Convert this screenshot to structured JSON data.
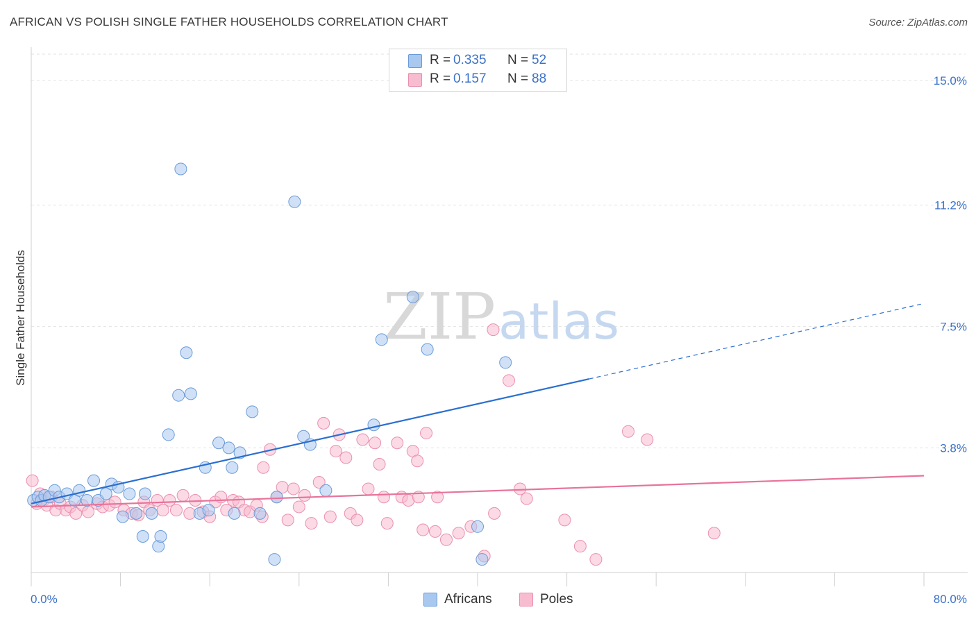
{
  "title": "AFRICAN VS POLISH SINGLE FATHER HOUSEHOLDS CORRELATION CHART",
  "source": "Source: ZipAtlas.com",
  "watermark": {
    "zip": "ZIP",
    "atlas": "atlas"
  },
  "legend_top": {
    "rows": [
      {
        "r_label": "R =",
        "r_value": "0.335",
        "n_label": "N =",
        "n_value": "52",
        "color": "#a9c8f0"
      },
      {
        "r_label": "R =",
        "r_value": "0.157",
        "n_label": "N =",
        "n_value": "88",
        "color": "#f8bcd0"
      }
    ]
  },
  "legend_bottom": {
    "items": [
      {
        "label": "Africans",
        "color": "#a9c8f0"
      },
      {
        "label": "Poles",
        "color": "#f8bcd0"
      }
    ]
  },
  "colors": {
    "africans_fill": "#a9c8f0",
    "africans_stroke": "#6a9bd8",
    "africans_line": "#2a6fcf",
    "poles_fill": "#f8bcd0",
    "poles_stroke": "#ea8fae",
    "poles_line": "#e8739a",
    "tick_label": "#3c72c8",
    "grid": "#e2e2e2"
  },
  "chart_data": {
    "type": "scatter",
    "title": "AFRICAN VS POLISH SINGLE FATHER HOUSEHOLDS CORRELATION CHART",
    "xlabel": "",
    "ylabel": "Single Father Households",
    "xlim": [
      0,
      80
    ],
    "ylim": [
      0,
      15.8
    ],
    "x_tick_labels": [
      {
        "value": 0,
        "label": "0.0%"
      },
      {
        "value": 80,
        "label": "80.0%"
      }
    ],
    "y_ticks": [
      {
        "value": 3.8,
        "label": "3.8%"
      },
      {
        "value": 7.5,
        "label": "7.5%"
      },
      {
        "value": 11.2,
        "label": "11.2%"
      },
      {
        "value": 15.0,
        "label": "15.0%"
      }
    ],
    "x_minor_ticks": [
      0,
      8,
      16,
      24,
      32,
      40,
      48,
      56,
      64,
      72,
      80
    ],
    "grid": true,
    "series": [
      {
        "name": "Africans",
        "R": 0.335,
        "N": 52,
        "trend": {
          "x_start": 0,
          "y_start": 2.1,
          "x_solid_end": 50,
          "y_solid_end": 5.9,
          "x_end": 80,
          "y_end": 8.2
        },
        "points": [
          [
            0.2,
            2.2
          ],
          [
            0.6,
            2.3
          ],
          [
            0.9,
            2.2
          ],
          [
            1.2,
            2.35
          ],
          [
            1.6,
            2.3
          ],
          [
            2.1,
            2.5
          ],
          [
            2.5,
            2.3
          ],
          [
            3.2,
            2.4
          ],
          [
            3.9,
            2.2
          ],
          [
            4.3,
            2.5
          ],
          [
            5.0,
            2.2
          ],
          [
            5.6,
            2.8
          ],
          [
            6.0,
            2.2
          ],
          [
            6.7,
            2.4
          ],
          [
            7.2,
            2.7
          ],
          [
            7.8,
            2.6
          ],
          [
            8.2,
            1.7
          ],
          [
            8.8,
            2.4
          ],
          [
            9.4,
            1.8
          ],
          [
            10.0,
            1.1
          ],
          [
            10.2,
            2.4
          ],
          [
            10.8,
            1.8
          ],
          [
            11.4,
            0.8
          ],
          [
            11.6,
            1.1
          ],
          [
            12.3,
            4.2
          ],
          [
            13.2,
            5.4
          ],
          [
            13.4,
            12.3
          ],
          [
            13.9,
            6.7
          ],
          [
            14.3,
            5.45
          ],
          [
            15.1,
            1.8
          ],
          [
            15.6,
            3.2
          ],
          [
            15.9,
            1.9
          ],
          [
            16.8,
            3.95
          ],
          [
            17.7,
            3.8
          ],
          [
            18.0,
            3.2
          ],
          [
            18.2,
            1.8
          ],
          [
            18.7,
            3.65
          ],
          [
            19.8,
            4.9
          ],
          [
            20.5,
            1.8
          ],
          [
            21.8,
            0.4
          ],
          [
            22.0,
            2.3
          ],
          [
            23.6,
            11.3
          ],
          [
            24.4,
            4.15
          ],
          [
            25.0,
            3.9
          ],
          [
            26.4,
            2.5
          ],
          [
            30.7,
            4.5
          ],
          [
            31.4,
            7.1
          ],
          [
            34.2,
            8.4
          ],
          [
            35.5,
            6.8
          ],
          [
            40.0,
            1.4
          ],
          [
            40.4,
            0.4
          ],
          [
            42.5,
            6.4
          ]
        ]
      },
      {
        "name": "Poles",
        "R": 0.157,
        "N": 88,
        "trend": {
          "x_start": 0,
          "y_start": 2.0,
          "x_end": 80,
          "y_end": 2.95
        },
        "points": [
          [
            0.1,
            2.8
          ],
          [
            0.5,
            2.1
          ],
          [
            0.8,
            2.4
          ],
          [
            1.1,
            2.2
          ],
          [
            1.4,
            2.05
          ],
          [
            1.8,
            2.3
          ],
          [
            2.2,
            1.9
          ],
          [
            2.6,
            2.1
          ],
          [
            3.1,
            1.9
          ],
          [
            3.5,
            2.0
          ],
          [
            4.0,
            1.8
          ],
          [
            4.6,
            2.05
          ],
          [
            5.1,
            1.85
          ],
          [
            5.9,
            2.1
          ],
          [
            6.4,
            2.0
          ],
          [
            7.0,
            2.05
          ],
          [
            7.5,
            2.15
          ],
          [
            8.3,
            1.9
          ],
          [
            9.0,
            1.8
          ],
          [
            9.6,
            1.75
          ],
          [
            10.1,
            2.15
          ],
          [
            10.6,
            1.9
          ],
          [
            11.3,
            2.2
          ],
          [
            11.8,
            1.9
          ],
          [
            12.4,
            2.2
          ],
          [
            13.0,
            1.9
          ],
          [
            13.6,
            2.35
          ],
          [
            14.2,
            1.8
          ],
          [
            14.7,
            2.2
          ],
          [
            15.4,
            1.85
          ],
          [
            16.0,
            1.7
          ],
          [
            16.5,
            2.15
          ],
          [
            17.0,
            2.3
          ],
          [
            17.5,
            1.9
          ],
          [
            18.1,
            2.2
          ],
          [
            18.6,
            2.15
          ],
          [
            19.1,
            1.9
          ],
          [
            19.6,
            1.85
          ],
          [
            20.2,
            2.05
          ],
          [
            20.7,
            1.7
          ],
          [
            20.8,
            3.2
          ],
          [
            21.4,
            3.75
          ],
          [
            22.0,
            2.3
          ],
          [
            22.5,
            2.6
          ],
          [
            23.0,
            1.6
          ],
          [
            23.5,
            2.55
          ],
          [
            24.0,
            2.0
          ],
          [
            24.5,
            2.35
          ],
          [
            25.1,
            1.5
          ],
          [
            25.8,
            2.75
          ],
          [
            26.2,
            4.55
          ],
          [
            26.8,
            1.7
          ],
          [
            27.3,
            3.7
          ],
          [
            27.6,
            4.2
          ],
          [
            28.2,
            3.5
          ],
          [
            28.6,
            1.8
          ],
          [
            29.2,
            1.6
          ],
          [
            29.7,
            4.05
          ],
          [
            30.2,
            2.55
          ],
          [
            30.8,
            3.95
          ],
          [
            31.2,
            3.3
          ],
          [
            31.6,
            2.3
          ],
          [
            31.9,
            1.5
          ],
          [
            32.8,
            3.95
          ],
          [
            33.2,
            2.3
          ],
          [
            33.8,
            2.2
          ],
          [
            34.2,
            3.7
          ],
          [
            34.6,
            3.4
          ],
          [
            35.1,
            1.3
          ],
          [
            35.4,
            4.25
          ],
          [
            36.2,
            1.25
          ],
          [
            37.2,
            1.0
          ],
          [
            38.3,
            1.2
          ],
          [
            39.4,
            1.4
          ],
          [
            40.6,
            0.5
          ],
          [
            41.4,
            7.4
          ],
          [
            41.5,
            1.8
          ],
          [
            42.8,
            5.85
          ],
          [
            43.8,
            2.55
          ],
          [
            44.4,
            2.25
          ],
          [
            47.8,
            1.6
          ],
          [
            49.2,
            0.8
          ],
          [
            50.6,
            0.4
          ],
          [
            53.5,
            4.3
          ],
          [
            55.2,
            4.05
          ],
          [
            61.2,
            1.2
          ],
          [
            34.7,
            2.3
          ],
          [
            36.4,
            2.3
          ]
        ]
      }
    ]
  }
}
